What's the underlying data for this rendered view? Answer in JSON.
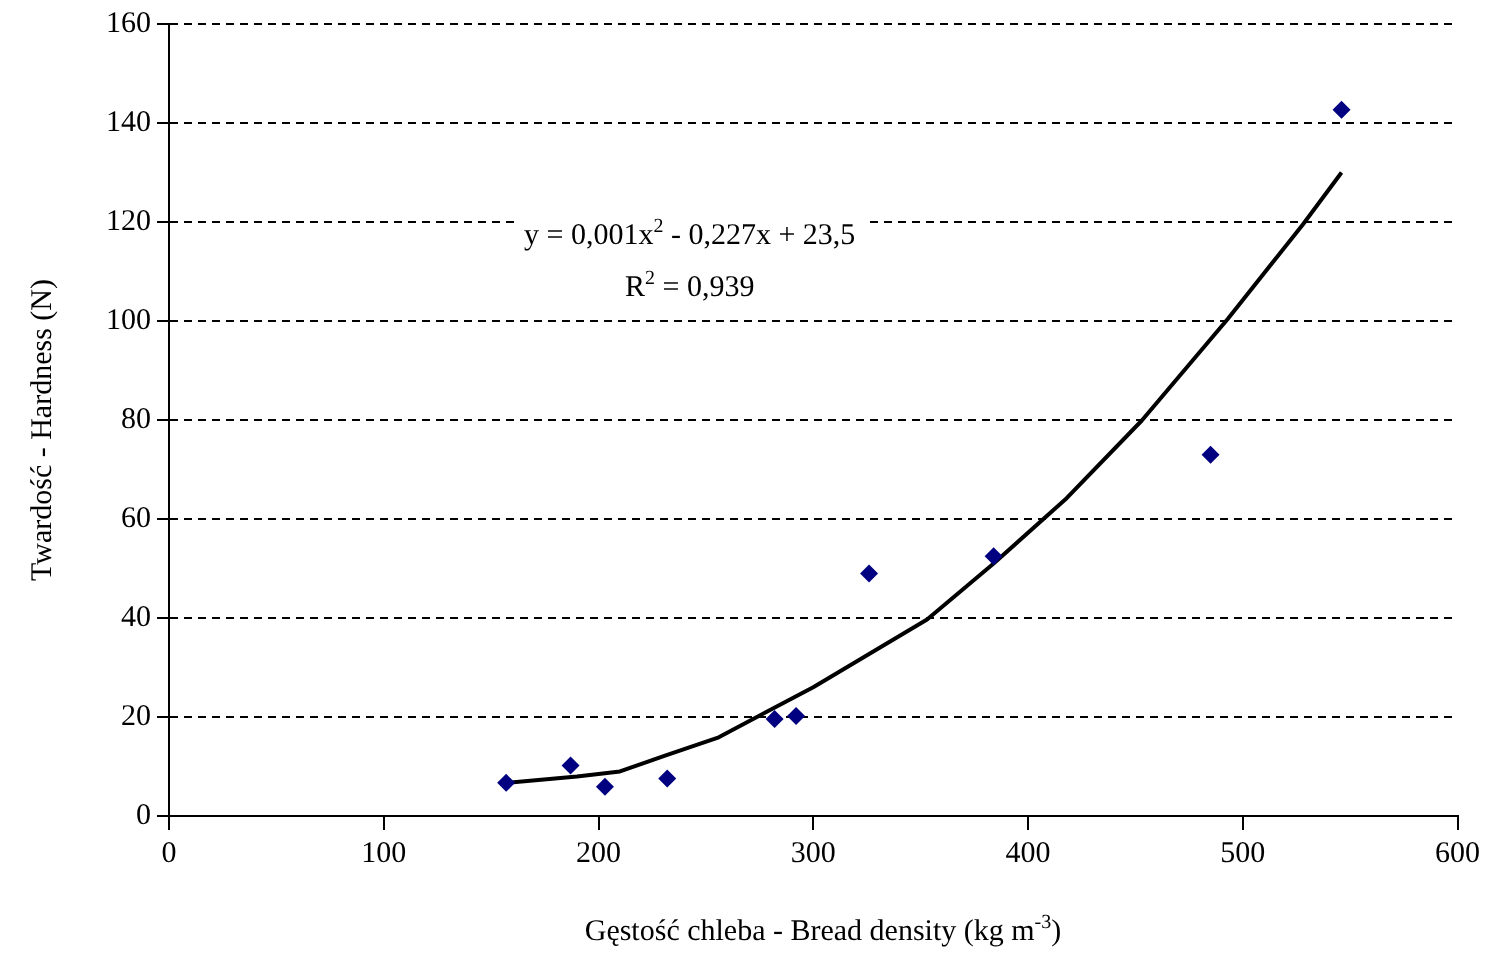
{
  "chart_data": {
    "type": "scatter",
    "xlabel": "Gęstość chleba - Bread density (kg m$^{-3}$)",
    "ylabel": "Twardość - Hardness (N)",
    "annotations": [
      "y = 0,001x$^{2}$ - 0,227x + 23,5",
      "R$^{2}$ = 0,939"
    ],
    "series": [
      {
        "color": "#000080",
        "marker": "diamond",
        "x": [
          157,
          187,
          203,
          232,
          282,
          292,
          326,
          384,
          485,
          546
        ],
        "values": [
          6.7,
          10.2,
          5.9,
          7.6,
          19.6,
          20.2,
          49,
          52.5,
          73,
          142.7
        ]
      },
      {
        "type": "line",
        "color": "#000000",
        "marker": "none",
        "line_style": "solid",
        "x": [
          157,
          190,
          210,
          231,
          256,
          272,
          300,
          353,
          384,
          418,
          453,
          493,
          528,
          546
        ],
        "values": [
          6.7,
          8,
          9,
          12.2,
          15.9,
          19.6,
          26,
          39.7,
          51,
          64.2,
          79.9,
          100.4,
          119.5,
          130
        ]
      }
    ],
    "xlim": [
      0,
      600
    ],
    "xticks": [
      0,
      100,
      200,
      300,
      400,
      500,
      600
    ],
    "ylim": [
      0,
      160
    ],
    "yticks": [
      0,
      20,
      40,
      60,
      80,
      100,
      120,
      140,
      160
    ],
    "grid": "y",
    "legend": false
  }
}
